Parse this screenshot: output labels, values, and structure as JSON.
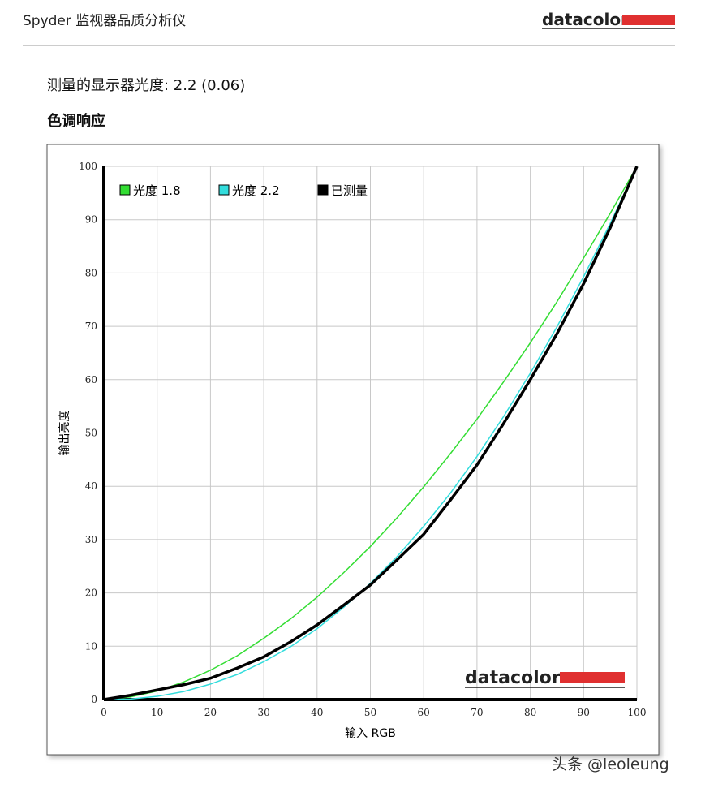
{
  "header": {
    "title": "Spyder 监视器品质分析仪",
    "logo": "datacolor"
  },
  "heading": "测量的显示器光度: 2.2 (0.06)",
  "subheading": "色调响应",
  "watermark": "头条 @leoleung",
  "chart_data": {
    "type": "line",
    "logo": "datacolor",
    "x_label": "输入 RGB",
    "y_label": "输出亮度",
    "x": [
      0,
      5,
      10,
      15,
      20,
      25,
      30,
      35,
      40,
      45,
      50,
      55,
      60,
      65,
      70,
      75,
      80,
      85,
      90,
      95,
      100
    ],
    "series": [
      {
        "name": "光度 1.8",
        "color": "#33dd33",
        "values": [
          0,
          0.5,
          1.6,
          3.3,
          5.5,
          8.2,
          11.5,
          15.1,
          19.2,
          23.8,
          28.7,
          34.1,
          39.9,
          46.1,
          52.6,
          59.6,
          66.9,
          74.6,
          82.8,
          91.2,
          100
        ]
      },
      {
        "name": "光度 2.2",
        "color": "#33dddd",
        "values": [
          0,
          0.1,
          0.6,
          1.5,
          2.9,
          4.7,
          7.1,
          9.9,
          13.3,
          17.3,
          21.8,
          26.8,
          32.5,
          38.7,
          45.6,
          53.1,
          61.2,
          69.9,
          79.3,
          89.3,
          100
        ]
      },
      {
        "name": "已测量",
        "color": "#000000",
        "values": [
          0,
          0.8,
          1.8,
          2.8,
          4.0,
          5.9,
          8.0,
          10.8,
          14.0,
          17.7,
          21.5,
          26.2,
          31.0,
          37.4,
          44.0,
          51.8,
          60.0,
          68.6,
          78.0,
          88.5,
          100
        ]
      }
    ],
    "xlim": [
      0,
      100
    ],
    "ylim": [
      0,
      100
    ],
    "xticks": [
      0,
      10,
      20,
      30,
      40,
      50,
      60,
      70,
      80,
      90,
      100
    ],
    "yticks": [
      0,
      10,
      20,
      30,
      40,
      50,
      60,
      70,
      80,
      90,
      100
    ],
    "grid": true,
    "legend": "top-left"
  }
}
